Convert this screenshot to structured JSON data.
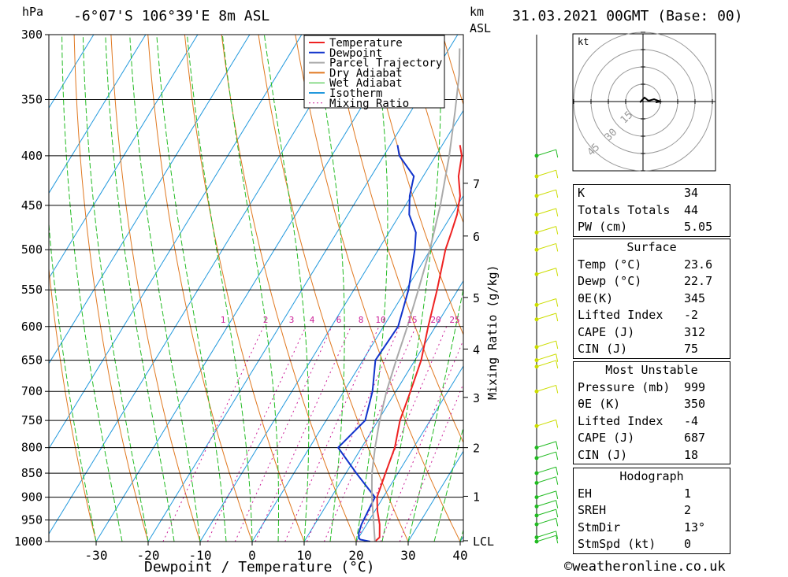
{
  "header": {
    "pressure_unit": "hPa",
    "location": "-6°07'S 106°39'E 8m ASL",
    "height_unit_line1": "km",
    "height_unit_line2": "ASL",
    "datetime": "31.03.2021 00GMT (Base: 00)"
  },
  "footer": {
    "copyright": "©weatheronline.co.uk"
  },
  "colors": {
    "temperature": "#ee2222",
    "dewpoint": "#1133cc",
    "parcel": "#aaaaaa",
    "dry_adiabat": "#e07820",
    "wet_adiabat": "#22bb22",
    "isotherm": "#2299dd",
    "mixing_ratio": "#cc2299",
    "wind_barb": "#ccdd00"
  },
  "chart_data": {
    "type": "line",
    "xlabel": "Dewpoint / Temperature (°C)",
    "ylabel": "",
    "y_axis_label": "hPa",
    "mixing_ratio_axis_label": "Mixing Ratio (g/kg)",
    "x_ticks": [
      -30,
      -20,
      -10,
      0,
      10,
      20,
      30,
      40
    ],
    "xlim": [
      -40,
      40
    ],
    "pressure_ticks": [
      300,
      350,
      400,
      450,
      500,
      550,
      600,
      650,
      700,
      750,
      800,
      850,
      900,
      950,
      1000
    ],
    "ylim_hpa": [
      1000,
      300
    ],
    "y_scale": "log",
    "grid": true,
    "legend_position": "top-right",
    "legend": [
      "Temperature",
      "Dewpoint",
      "Parcel Trajectory",
      "Dry Adiabat",
      "Wet Adiabat",
      "Isotherm",
      "Mixing Ratio"
    ],
    "mixing_ratio_labels": [
      "1",
      "2",
      "3",
      "4",
      "6",
      "8",
      "10",
      "15",
      "20",
      "25"
    ],
    "mixing_ratio_values": [
      1,
      2,
      3,
      4,
      6,
      8,
      10,
      15,
      20,
      25
    ],
    "km_labels": [
      {
        "km": "7",
        "p": 427
      },
      {
        "km": "6",
        "p": 484
      },
      {
        "km": "5",
        "p": 560
      },
      {
        "km": "4",
        "p": 633
      },
      {
        "km": "3",
        "p": 710
      },
      {
        "km": "2",
        "p": 800
      },
      {
        "km": "1",
        "p": 898
      },
      {
        "km": "LCL",
        "p": 998
      }
    ],
    "series": [
      {
        "name": "Temperature",
        "pressure": [
          1000,
          990,
          960,
          930,
          900,
          850,
          800,
          750,
          700,
          650,
          600,
          550,
          500,
          480,
          460,
          440,
          420,
          400,
          390
        ],
        "temperature": [
          23.6,
          24.0,
          22.5,
          20.5,
          18.8,
          17.6,
          16.4,
          14.2,
          12.8,
          11.2,
          8.6,
          6.0,
          2.9,
          2.0,
          1.0,
          -0.6,
          -3.2,
          -5.0,
          -6.6
        ]
      },
      {
        "name": "Dewpoint",
        "pressure": [
          1000,
          995,
          990,
          980,
          960,
          930,
          900,
          850,
          800,
          750,
          700,
          650,
          600,
          550,
          500,
          480,
          460,
          440,
          420,
          400,
          390
        ],
        "temperature": [
          22.7,
          20.5,
          20.0,
          19.5,
          19.0,
          18.7,
          18.4,
          12.0,
          5.5,
          7.5,
          5.5,
          2.4,
          2.8,
          0.5,
          -3.0,
          -4.8,
          -8.2,
          -10.3,
          -11.8,
          -17.0,
          -18.6
        ]
      },
      {
        "name": "Parcel Trajectory",
        "pressure": [
          1000,
          950,
          900,
          850,
          800,
          750,
          700,
          650,
          600,
          550,
          500,
          450,
          400,
          360,
          330,
          310
        ],
        "temperature": [
          23.6,
          20.8,
          17.8,
          15.0,
          12.6,
          10.3,
          8.2,
          6.4,
          4.6,
          2.4,
          -0.1,
          -3.3,
          -7.4,
          -11.5,
          -15.0,
          -18.0
        ]
      }
    ]
  },
  "hodograph": {
    "unit_label": "kt",
    "ring_labels": [
      "15",
      "30",
      "45"
    ]
  },
  "wind_barbs": {
    "pressures": [
      1000,
      990,
      960,
      940,
      920,
      900,
      870,
      850,
      820,
      800,
      760,
      700,
      660,
      650,
      630,
      590,
      570,
      530,
      500,
      480,
      460,
      440,
      420,
      400
    ]
  },
  "stats": {
    "basic": [
      {
        "label": "K",
        "value": "34"
      },
      {
        "label": "Totals Totals",
        "value": "44"
      },
      {
        "label": "PW (cm)",
        "value": "5.05"
      }
    ],
    "surface": {
      "title": "Surface",
      "rows": [
        {
          "label": "Temp (°C)",
          "value": "23.6"
        },
        {
          "label": "Dewp (°C)",
          "value": "22.7"
        },
        {
          "label": "θE(K)",
          "value": "345"
        },
        {
          "label": "Lifted Index",
          "value": "-2"
        },
        {
          "label": "CAPE (J)",
          "value": "312"
        },
        {
          "label": "CIN (J)",
          "value": "75"
        }
      ]
    },
    "most_unstable": {
      "title": "Most Unstable",
      "rows": [
        {
          "label": "Pressure (mb)",
          "value": "999"
        },
        {
          "label": "θE (K)",
          "value": "350"
        },
        {
          "label": "Lifted Index",
          "value": "-4"
        },
        {
          "label": "CAPE (J)",
          "value": "687"
        },
        {
          "label": "CIN (J)",
          "value": "18"
        }
      ]
    },
    "hodograph": {
      "title": "Hodograph",
      "rows": [
        {
          "label": "EH",
          "value": "1"
        },
        {
          "label": "SREH",
          "value": "2"
        },
        {
          "label": "StmDir",
          "value": "13°"
        },
        {
          "label": "StmSpd (kt)",
          "value": "0"
        }
      ]
    }
  }
}
